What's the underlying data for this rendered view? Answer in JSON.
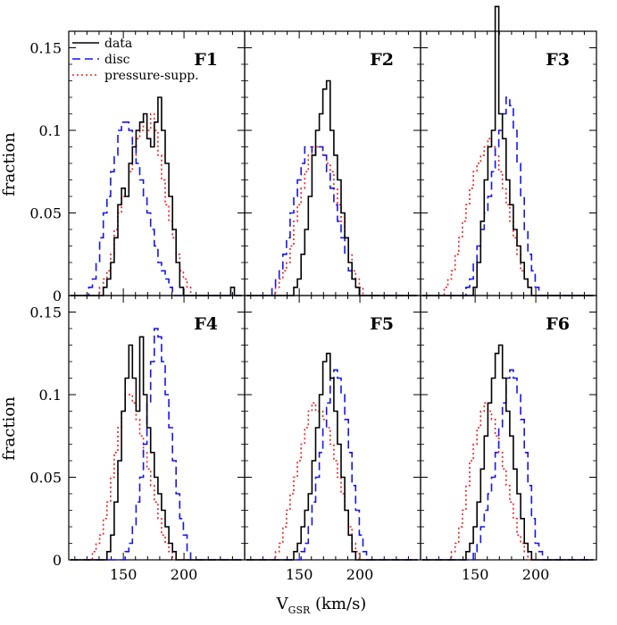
{
  "figure": {
    "xlabel_main": "V",
    "xlabel_sub": "GSR",
    "xlabel_unit": " (km/s)",
    "ylabel": "fraction",
    "colors": {
      "data": "#000000",
      "disc": "#1515ee",
      "pressure": "#ee2020",
      "axis": "#000000"
    }
  },
  "legend": {
    "placement": "top-left of panel F1",
    "items": [
      {
        "key": "data",
        "label": "data",
        "style": "solid"
      },
      {
        "key": "disc",
        "label": "disc",
        "style": "dashed"
      },
      {
        "key": "pressure",
        "label": "pressure-supp.",
        "style": "dotted"
      }
    ]
  },
  "chart_data": {
    "type": "line",
    "step": true,
    "xlim": [
      105,
      250
    ],
    "ylim": [
      0,
      0.16
    ],
    "xticks": [
      150,
      200
    ],
    "yticks": [
      0,
      0.05,
      0.1,
      0.15
    ],
    "yticklabels": [
      "0",
      "0.05",
      "0.1",
      "0.15"
    ],
    "x": [
      108,
      111,
      114,
      117,
      120,
      123,
      126,
      129,
      132,
      135,
      138,
      141,
      144,
      147,
      150,
      153,
      156,
      159,
      162,
      165,
      168,
      171,
      174,
      177,
      180,
      183,
      186,
      189,
      192,
      195,
      198,
      201,
      204,
      207,
      210,
      213,
      216,
      219,
      222,
      225,
      228,
      231,
      234,
      237,
      240,
      243,
      246
    ],
    "panels": [
      {
        "name": "F1",
        "series": [
          {
            "name": "data",
            "values": [
              0,
              0,
              0,
              0,
              0,
              0,
              0,
              0,
              0,
              0.005,
              0.01,
              0.02,
              0.035,
              0.055,
              0.065,
              0.06,
              0.08,
              0.09,
              0.1,
              0.105,
              0.11,
              0.095,
              0.09,
              0.105,
              0.12,
              0.1,
              0.08,
              0.06,
              0.04,
              0.02,
              0.005,
              0,
              0,
              0,
              0,
              0,
              0,
              0,
              0,
              0,
              0,
              0,
              0,
              0,
              0.005,
              0,
              0
            ]
          },
          {
            "name": "disc",
            "values": [
              0,
              0,
              0,
              0,
              0,
              0.005,
              0.01,
              0.02,
              0.035,
              0.05,
              0.06,
              0.075,
              0.085,
              0.1,
              0.105,
              0.105,
              0.1,
              0.09,
              0.08,
              0.07,
              0.06,
              0.05,
              0.04,
              0.03,
              0.02,
              0.015,
              0.01,
              0.005,
              0,
              0,
              0,
              0,
              0,
              0,
              0,
              0,
              0,
              0,
              0,
              0,
              0,
              0,
              0,
              0,
              0,
              0,
              0
            ]
          },
          {
            "name": "pressure-supp.",
            "values": [
              0,
              0,
              0,
              0,
              0,
              0,
              0,
              0,
              0.005,
              0.01,
              0.015,
              0.025,
              0.04,
              0.05,
              0.06,
              0.065,
              0.075,
              0.085,
              0.095,
              0.1,
              0.105,
              0.1,
              0.11,
              0.1,
              0.085,
              0.07,
              0.055,
              0.045,
              0.035,
              0.025,
              0.015,
              0.01,
              0.005,
              0,
              0,
              0,
              0,
              0,
              0,
              0,
              0,
              0,
              0,
              0,
              0,
              0,
              0
            ]
          }
        ]
      },
      {
        "name": "F2",
        "series": [
          {
            "name": "data",
            "values": [
              0,
              0,
              0,
              0,
              0,
              0,
              0,
              0,
              0,
              0,
              0,
              0,
              0,
              0.005,
              0.01,
              0.025,
              0.04,
              0.06,
              0.085,
              0.1,
              0.11,
              0.125,
              0.13,
              0.1,
              0.085,
              0.07,
              0.05,
              0.035,
              0.02,
              0.01,
              0.005,
              0,
              0,
              0,
              0,
              0,
              0,
              0,
              0,
              0,
              0,
              0,
              0,
              0,
              0,
              0,
              0
            ]
          },
          {
            "name": "disc",
            "values": [
              0,
              0,
              0,
              0,
              0,
              0,
              0,
              0.005,
              0.01,
              0.015,
              0.025,
              0.035,
              0.05,
              0.06,
              0.07,
              0.08,
              0.09,
              0.09,
              0.085,
              0.09,
              0.09,
              0.085,
              0.075,
              0.065,
              0.055,
              0.045,
              0.035,
              0.025,
              0.015,
              0.01,
              0.005,
              0,
              0,
              0,
              0,
              0,
              0,
              0,
              0,
              0,
              0,
              0,
              0,
              0,
              0,
              0,
              0
            ]
          },
          {
            "name": "pressure-supp.",
            "values": [
              0,
              0,
              0,
              0,
              0,
              0,
              0,
              0,
              0.005,
              0.01,
              0.015,
              0.02,
              0.03,
              0.045,
              0.055,
              0.065,
              0.075,
              0.085,
              0.09,
              0.09,
              0.09,
              0.085,
              0.08,
              0.075,
              0.065,
              0.055,
              0.045,
              0.035,
              0.025,
              0.015,
              0.01,
              0.005,
              0,
              0,
              0,
              0,
              0,
              0,
              0,
              0,
              0,
              0,
              0,
              0,
              0,
              0,
              0
            ]
          }
        ]
      },
      {
        "name": "F3",
        "series": [
          {
            "name": "data",
            "values": [
              0,
              0,
              0,
              0,
              0,
              0,
              0,
              0,
              0,
              0,
              0,
              0,
              0,
              0,
              0.005,
              0.02,
              0.045,
              0.07,
              0.09,
              0.1,
              0.175,
              0.11,
              0.095,
              0.07,
              0.055,
              0.04,
              0.03,
              0.02,
              0.01,
              0.005,
              0,
              0,
              0,
              0,
              0,
              0,
              0,
              0,
              0,
              0,
              0,
              0,
              0,
              0,
              0,
              0,
              0
            ]
          },
          {
            "name": "disc",
            "values": [
              0,
              0,
              0,
              0,
              0,
              0,
              0,
              0,
              0,
              0,
              0,
              0,
              0.005,
              0.01,
              0.02,
              0.03,
              0.04,
              0.05,
              0.06,
              0.075,
              0.09,
              0.1,
              0.11,
              0.12,
              0.115,
              0.1,
              0.08,
              0.06,
              0.04,
              0.025,
              0.015,
              0.005,
              0,
              0,
              0,
              0,
              0,
              0,
              0,
              0,
              0,
              0,
              0,
              0,
              0,
              0,
              0
            ]
          },
          {
            "name": "pressure-supp.",
            "values": [
              0,
              0,
              0,
              0,
              0,
              0,
              0.005,
              0.01,
              0.015,
              0.025,
              0.035,
              0.045,
              0.055,
              0.065,
              0.075,
              0.08,
              0.085,
              0.09,
              0.095,
              0.09,
              0.085,
              0.075,
              0.065,
              0.055,
              0.045,
              0.035,
              0.025,
              0.015,
              0.01,
              0.005,
              0,
              0,
              0,
              0,
              0,
              0,
              0,
              0,
              0,
              0,
              0,
              0,
              0,
              0,
              0,
              0,
              0
            ]
          }
        ]
      },
      {
        "name": "F4",
        "series": [
          {
            "name": "data",
            "values": [
              0,
              0,
              0,
              0,
              0,
              0,
              0,
              0,
              0,
              0,
              0.005,
              0.015,
              0.035,
              0.06,
              0.09,
              0.11,
              0.13,
              0.11,
              0.09,
              0.135,
              0.1,
              0.08,
              0.065,
              0.05,
              0.04,
              0.03,
              0.02,
              0.01,
              0.005,
              0,
              0,
              0,
              0,
              0,
              0,
              0,
              0,
              0,
              0,
              0,
              0,
              0,
              0,
              0,
              0,
              0,
              0
            ]
          },
          {
            "name": "disc",
            "values": [
              0,
              0,
              0,
              0,
              0,
              0,
              0,
              0,
              0,
              0,
              0,
              0,
              0,
              0,
              0,
              0.005,
              0.01,
              0.02,
              0.035,
              0.05,
              0.07,
              0.095,
              0.12,
              0.14,
              0.135,
              0.12,
              0.1,
              0.08,
              0.06,
              0.04,
              0.025,
              0.015,
              0.005,
              0,
              0,
              0,
              0,
              0,
              0,
              0,
              0,
              0,
              0,
              0,
              0,
              0,
              0
            ]
          },
          {
            "name": "pressure-supp.",
            "values": [
              0,
              0,
              0,
              0,
              0,
              0,
              0.005,
              0.01,
              0.015,
              0.025,
              0.035,
              0.05,
              0.065,
              0.08,
              0.09,
              0.1,
              0.1,
              0.095,
              0.085,
              0.075,
              0.065,
              0.055,
              0.045,
              0.035,
              0.025,
              0.015,
              0.01,
              0.005,
              0,
              0,
              0,
              0,
              0,
              0,
              0,
              0,
              0,
              0,
              0,
              0,
              0,
              0,
              0,
              0,
              0,
              0,
              0
            ]
          }
        ]
      },
      {
        "name": "F5",
        "series": [
          {
            "name": "data",
            "values": [
              0,
              0,
              0,
              0,
              0,
              0,
              0,
              0,
              0,
              0,
              0,
              0,
              0,
              0.005,
              0.01,
              0.02,
              0.03,
              0.04,
              0.06,
              0.08,
              0.1,
              0.12,
              0.125,
              0.11,
              0.09,
              0.07,
              0.05,
              0.03,
              0.015,
              0.005,
              0,
              0,
              0,
              0,
              0,
              0,
              0,
              0,
              0,
              0,
              0,
              0,
              0,
              0,
              0,
              0,
              0
            ]
          },
          {
            "name": "disc",
            "values": [
              0,
              0,
              0,
              0,
              0,
              0,
              0,
              0,
              0,
              0,
              0,
              0,
              0,
              0,
              0,
              0.005,
              0.01,
              0.02,
              0.035,
              0.05,
              0.065,
              0.08,
              0.095,
              0.11,
              0.115,
              0.11,
              0.1,
              0.085,
              0.065,
              0.045,
              0.03,
              0.015,
              0.005,
              0,
              0,
              0,
              0,
              0,
              0,
              0,
              0,
              0,
              0,
              0,
              0,
              0,
              0
            ]
          },
          {
            "name": "pressure-supp.",
            "values": [
              0,
              0,
              0,
              0,
              0,
              0,
              0,
              0,
              0.005,
              0.01,
              0.02,
              0.03,
              0.04,
              0.05,
              0.06,
              0.07,
              0.08,
              0.09,
              0.095,
              0.09,
              0.09,
              0.085,
              0.08,
              0.07,
              0.06,
              0.05,
              0.04,
              0.03,
              0.02,
              0.01,
              0.005,
              0,
              0,
              0,
              0,
              0,
              0,
              0,
              0,
              0,
              0,
              0,
              0,
              0,
              0,
              0,
              0
            ]
          }
        ]
      },
      {
        "name": "F6",
        "series": [
          {
            "name": "data",
            "values": [
              0,
              0,
              0,
              0,
              0,
              0,
              0,
              0,
              0,
              0,
              0,
              0,
              0.005,
              0.01,
              0.02,
              0.035,
              0.055,
              0.075,
              0.095,
              0.11,
              0.125,
              0.13,
              0.11,
              0.09,
              0.075,
              0.055,
              0.04,
              0.025,
              0.01,
              0.005,
              0,
              0,
              0,
              0,
              0,
              0,
              0,
              0,
              0,
              0,
              0,
              0,
              0,
              0,
              0,
              0,
              0
            ]
          },
          {
            "name": "disc",
            "values": [
              0,
              0,
              0,
              0,
              0,
              0,
              0,
              0,
              0,
              0,
              0,
              0,
              0,
              0,
              0.005,
              0.01,
              0.02,
              0.03,
              0.04,
              0.05,
              0.065,
              0.08,
              0.095,
              0.11,
              0.115,
              0.11,
              0.1,
              0.085,
              0.065,
              0.045,
              0.025,
              0.01,
              0.005,
              0,
              0,
              0,
              0,
              0,
              0,
              0,
              0,
              0,
              0,
              0,
              0,
              0,
              0
            ]
          },
          {
            "name": "pressure-supp.",
            "values": [
              0,
              0,
              0,
              0,
              0,
              0,
              0,
              0,
              0.005,
              0.01,
              0.02,
              0.03,
              0.045,
              0.06,
              0.07,
              0.08,
              0.09,
              0.095,
              0.09,
              0.085,
              0.075,
              0.065,
              0.055,
              0.045,
              0.035,
              0.025,
              0.015,
              0.01,
              0.005,
              0,
              0,
              0,
              0,
              0,
              0,
              0,
              0,
              0,
              0,
              0,
              0,
              0,
              0,
              0,
              0,
              0,
              0
            ]
          }
        ]
      }
    ]
  }
}
